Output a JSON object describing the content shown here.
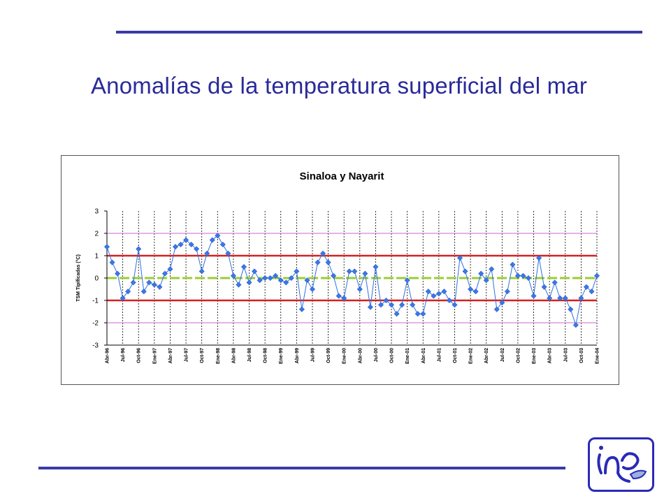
{
  "slide": {
    "title": "Anomalías de la temperatura superficial del mar"
  },
  "colors": {
    "rule": "#3a3aa8",
    "title_text": "#2a2a9a",
    "series": "#2f6fe0",
    "threshold_red": "#d62020",
    "zero_green": "#9acd32",
    "grid_violet": "#cc66cc"
  },
  "logo": {
    "icon": "inp-logo-icon"
  },
  "chart_data": {
    "type": "line",
    "title": "Sinaloa y Nayarit",
    "ylabel": "TSM Tipificadas (°C)",
    "xlabel": "",
    "ylim": [
      -3,
      3
    ],
    "yticks": [
      "3",
      "2",
      "1",
      "0",
      "-1",
      "-2",
      "-3"
    ],
    "x_tick_labels": [
      "Abr-96",
      "Jul-96",
      "Oct-96",
      "Ene-97",
      "Abr-97",
      "Jul-97",
      "Oct-97",
      "Ene-98",
      "Abr-98",
      "Jul-98",
      "Oct-98",
      "Ene-99",
      "Abr-99",
      "Jul-99",
      "Oct-99",
      "Ene-00",
      "Abr-00",
      "Jul-00",
      "Oct-00",
      "Ene-01",
      "Abr-01",
      "Jul-01",
      "Oct-01",
      "Ene-02",
      "Abr-02",
      "Jul-02",
      "Oct-02",
      "Ene-03",
      "Abr-03",
      "Jul-03",
      "Oct-03",
      "Ene-04"
    ],
    "reference_lines": [
      {
        "y": 1,
        "color": "#d62020"
      },
      {
        "y": -1,
        "color": "#d62020"
      },
      {
        "y": 0,
        "color": "#9acd32"
      },
      {
        "y": 2,
        "color": "#cc66cc"
      },
      {
        "y": -2,
        "color": "#cc66cc"
      }
    ],
    "grid": "vertical dotted",
    "legend": "none",
    "series": [
      {
        "values": [
          1.4,
          0.7,
          0.2,
          -0.9,
          -0.6,
          -0.2,
          1.3,
          -0.6,
          -0.2,
          -0.3,
          -0.4,
          0.2,
          0.4,
          1.4,
          1.5,
          1.7,
          1.5,
          1.3,
          0.3,
          1.1,
          1.7,
          1.9,
          1.5,
          1.1,
          0.1,
          -0.3,
          0.5,
          -0.2,
          0.3,
          -0.1,
          0.0,
          0.0,
          0.1,
          -0.1,
          -0.2,
          0.0,
          0.3,
          -1.4,
          -0.1,
          -0.5,
          0.7,
          1.1,
          0.7,
          0.1,
          -0.8,
          -0.9,
          0.3,
          0.3,
          -0.5,
          0.2,
          -1.3,
          0.5,
          -1.2,
          -1.0,
          -1.2,
          -1.6,
          -1.2,
          -0.1,
          -1.2,
          -1.6,
          -1.6,
          -0.6,
          -0.8,
          -0.7,
          -0.6,
          -1.0,
          -1.2,
          0.9,
          0.3,
          -0.5,
          -0.6,
          0.2,
          -0.1,
          0.4,
          -1.4,
          -1.1,
          -0.6,
          0.6,
          0.1,
          0.1,
          0.0,
          -0.8,
          0.9,
          -0.4,
          -0.9,
          -0.2,
          -0.9,
          -0.9,
          -1.4,
          -2.1,
          -0.9,
          -0.4,
          -0.6,
          0.1
        ]
      }
    ]
  }
}
